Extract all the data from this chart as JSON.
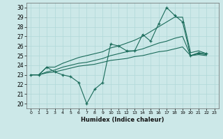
{
  "xlabel": "Humidex (Indice chaleur)",
  "xlim": [
    -0.5,
    23.5
  ],
  "ylim": [
    19.5,
    30.5
  ],
  "yticks": [
    20,
    21,
    22,
    23,
    24,
    25,
    26,
    27,
    28,
    29,
    30
  ],
  "xticks": [
    0,
    1,
    2,
    3,
    4,
    5,
    6,
    7,
    8,
    9,
    10,
    11,
    12,
    13,
    14,
    15,
    16,
    17,
    18,
    19,
    20,
    21,
    22,
    23
  ],
  "background_color": "#cce8e8",
  "grid_color": "#b0d8d8",
  "line_color": "#1a6b5a",
  "series": {
    "line_marked": [
      23,
      23,
      23.8,
      23.3,
      23.0,
      22.8,
      22.2,
      20.0,
      21.5,
      22.2,
      26.2,
      26.0,
      25.5,
      25.5,
      27.2,
      26.5,
      28.3,
      30.0,
      29.2,
      28.5,
      25.0,
      25.3,
      25.2
    ],
    "line_upper": [
      23,
      23,
      23.8,
      23.8,
      24.2,
      24.5,
      24.8,
      25.0,
      25.2,
      25.4,
      25.8,
      26.0,
      26.3,
      26.6,
      27.0,
      27.5,
      28.0,
      28.5,
      29.0,
      29.0,
      25.3,
      25.5,
      25.2
    ],
    "line_mid": [
      23,
      23,
      23.3,
      23.5,
      23.8,
      24.0,
      24.2,
      24.3,
      24.5,
      24.7,
      25.0,
      25.2,
      25.4,
      25.5,
      25.7,
      26.0,
      26.3,
      26.5,
      26.8,
      27.0,
      25.0,
      25.2,
      25.1
    ],
    "line_lower": [
      23,
      23,
      23.2,
      23.3,
      23.5,
      23.7,
      23.9,
      24.0,
      24.1,
      24.3,
      24.5,
      24.6,
      24.7,
      24.9,
      25.0,
      25.2,
      25.4,
      25.5,
      25.7,
      25.9,
      25.0,
      25.1,
      25.0
    ]
  }
}
